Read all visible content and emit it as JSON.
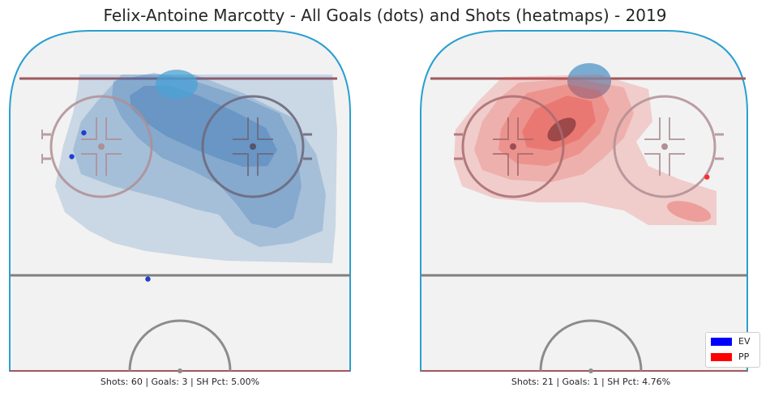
{
  "chart_data": {
    "type": "scatter",
    "title": "Felix-Antoine Marcotty - All Goals (dots) and Shots (heatmaps) - 2019",
    "panels": [
      {
        "name": "EV",
        "stats_text": "Shots: 60 | Goals: 3 | SH Pct: 5.00%",
        "shots": 60,
        "goals": 3,
        "sh_pct": "5.00%",
        "color": "#1f3fd1",
        "heatmap_color": "#3a78b5",
        "goal_points": [
          [
            -24,
            70
          ],
          [
            -27,
            63
          ],
          [
            -8,
            27
          ]
        ]
      },
      {
        "name": "PP",
        "stats_text": "Shots: 21 | Goals: 1 | SH Pct: 4.76%",
        "shots": 21,
        "goals": 1,
        "sh_pct": "4.76%",
        "color": "#ff2a2a",
        "heatmap_color": "#e8493f",
        "goal_points": [
          [
            32,
            57
          ]
        ]
      }
    ],
    "legend": {
      "placement": "bottom-right",
      "entries": [
        {
          "label": "EV",
          "color": "#0000ff"
        },
        {
          "label": "PP",
          "color": "#ff0000"
        }
      ]
    },
    "grid": false
  }
}
